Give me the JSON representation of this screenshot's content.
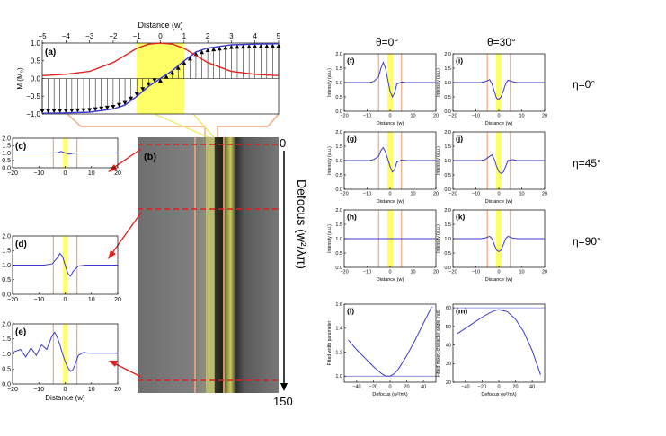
{
  "figure": {
    "header_theta0": "θ=0°",
    "header_theta30": "θ=30°",
    "row_eta0": "η=0°",
    "row_eta45": "η=45°",
    "row_eta90": "η=90°",
    "defocus_label": "Defocus (w²/λπ)",
    "defocus_start": "0",
    "defocus_end": "150",
    "colors": {
      "curve": "#3a3acb",
      "red_curve": "#e0221d",
      "highlight": "#ffff66",
      "orange_line": "#f3a97f",
      "dashed": "#e11d1d",
      "grey_image": "#7a7a7a"
    }
  },
  "chart_data": [
    {
      "id": "a",
      "panel_label": "(a)",
      "type": "line",
      "title": "Distance (w)",
      "xlabel": "",
      "ylabel": "M (M₀)",
      "xlim": [
        -5,
        5
      ],
      "ylim": [
        -1,
        1
      ],
      "xticks": [
        "−5",
        "−4",
        "−3",
        "−2",
        "−1",
        "0",
        "1",
        "2",
        "3",
        "4",
        "5"
      ],
      "yticks": [
        "1.0",
        "0.5",
        "0.0",
        "−0.5",
        "−1.0"
      ],
      "series": [
        {
          "x": [
            -5,
            -4,
            -3,
            -2,
            -1.5,
            -1,
            -0.5,
            0,
            0.5,
            1,
            1.5,
            2,
            3,
            4,
            5
          ],
          "y": [
            -0.98,
            -0.97,
            -0.95,
            -0.86,
            -0.75,
            -0.5,
            -0.22,
            0.0,
            0.22,
            0.5,
            0.75,
            0.86,
            0.95,
            0.97,
            0.98
          ]
        },
        {
          "x": [
            -5,
            -4,
            -3,
            -2,
            -1.5,
            -1,
            -0.5,
            0,
            0.5,
            1,
            1.5,
            2,
            3,
            4,
            5
          ],
          "y": [
            0.08,
            0.12,
            0.2,
            0.45,
            0.65,
            0.85,
            0.97,
            1.0,
            0.97,
            0.85,
            0.65,
            0.45,
            0.2,
            0.12,
            0.08
          ]
        }
      ]
    },
    {
      "id": "c",
      "panel_label": "(c)",
      "type": "line",
      "xlim": [
        -20,
        20
      ],
      "ylim": [
        0,
        2
      ],
      "xticks": [
        "−20",
        "−10",
        "0",
        "10",
        "20"
      ],
      "yticks": [
        "2.0",
        "1.5",
        "1.0",
        "0.5",
        "0.0"
      ],
      "xlabel": "",
      "series": [
        {
          "x": [
            -20,
            -5,
            -3,
            -1.5,
            0,
            1.5,
            3,
            5,
            20
          ],
          "y": [
            1.0,
            1.0,
            1.02,
            1.1,
            1.0,
            0.92,
            0.98,
            1.0,
            1.0
          ]
        }
      ]
    },
    {
      "id": "d",
      "panel_label": "(d)",
      "type": "line",
      "xlim": [
        -20,
        20
      ],
      "ylim": [
        0,
        2
      ],
      "xticks": [
        "−20",
        "−10",
        "0",
        "10",
        "20"
      ],
      "yticks": [
        "2.0",
        "1.5",
        "1.0",
        "0.5",
        "0.0"
      ],
      "xlabel": "",
      "series": [
        {
          "x": [
            -20,
            -8,
            -5,
            -3,
            -2,
            -1,
            0,
            1,
            2,
            3,
            5,
            8,
            20
          ],
          "y": [
            1.0,
            1.0,
            1.04,
            1.25,
            1.4,
            1.3,
            1.0,
            0.72,
            0.62,
            0.78,
            0.97,
            1.0,
            1.0
          ]
        }
      ]
    },
    {
      "id": "e",
      "panel_label": "(e)",
      "type": "line",
      "xlim": [
        -20,
        20
      ],
      "ylim": [
        0,
        2
      ],
      "xticks": [
        "−20",
        "−10",
        "0",
        "10",
        "20"
      ],
      "yticks": [
        "2.0",
        "1.5",
        "1.0",
        "0.5",
        "0.0"
      ],
      "xlabel": "Distance (w)",
      "series": [
        {
          "x": [
            -20,
            -17,
            -15,
            -13,
            -11,
            -9,
            -7,
            -5,
            -4,
            -3,
            -2,
            -1,
            0,
            1,
            2,
            3,
            4,
            5,
            7,
            9,
            20
          ],
          "y": [
            1.05,
            1.15,
            0.9,
            1.2,
            0.95,
            1.3,
            1.15,
            1.6,
            1.72,
            1.55,
            1.3,
            1.0,
            0.75,
            0.55,
            0.42,
            0.48,
            0.7,
            0.95,
            1.05,
            1.02,
            1.02
          ]
        }
      ]
    },
    {
      "id": "f",
      "panel_label": "(f)",
      "type": "line",
      "xlim": [
        -20,
        20
      ],
      "ylim": [
        0,
        2
      ],
      "ylabel": "Intensity (a.u.)",
      "xlabel": "Distance (w)",
      "xticks": [
        "−20",
        "−10",
        "0",
        "10",
        "20"
      ],
      "yticks": [
        "2.0",
        "1.5",
        "1.0",
        "0.5",
        "0.0"
      ],
      "series": [
        {
          "x": [
            -20,
            -9,
            -7,
            -5,
            -4,
            -3,
            -2,
            -1,
            0,
            1,
            2,
            3,
            5,
            7,
            20
          ],
          "y": [
            1.0,
            1.0,
            1.04,
            1.2,
            1.5,
            1.7,
            1.5,
            1.1,
            0.7,
            0.5,
            0.65,
            0.95,
            1.02,
            1.0,
            1.0
          ]
        }
      ]
    },
    {
      "id": "i",
      "panel_label": "(i)",
      "type": "line",
      "xlim": [
        -20,
        20
      ],
      "ylim": [
        0,
        2
      ],
      "ylabel": "Intensity (a.u.)",
      "xlabel": "Distance (w)",
      "xticks": [
        "−20",
        "−10",
        "0",
        "10",
        "20"
      ],
      "yticks": [
        "2.0",
        "1.5",
        "1.0",
        "0.5",
        "0.0"
      ],
      "series": [
        {
          "x": [
            -20,
            -8,
            -6,
            -4,
            -3,
            -2,
            -1,
            0,
            1,
            2,
            3,
            4,
            6,
            8,
            20
          ],
          "y": [
            1.0,
            1.0,
            1.03,
            1.1,
            0.95,
            0.7,
            0.45,
            0.42,
            0.5,
            0.72,
            0.95,
            1.08,
            1.03,
            1.0,
            1.0
          ]
        }
      ]
    },
    {
      "id": "g",
      "panel_label": "(g)",
      "type": "line",
      "xlim": [
        -20,
        20
      ],
      "ylim": [
        0,
        2
      ],
      "ylabel": "Intensity (a.u.)",
      "xlabel": "Distance (w)",
      "xticks": [
        "−20",
        "−10",
        "0",
        "10",
        "20"
      ],
      "yticks": [
        "2.0",
        "1.5",
        "1.0",
        "0.5",
        "0.0"
      ],
      "series": [
        {
          "x": [
            -20,
            -9,
            -7,
            -5,
            -4,
            -3,
            -2,
            -1,
            0,
            1,
            2,
            3,
            5,
            7,
            20
          ],
          "y": [
            1.0,
            1.0,
            1.04,
            1.15,
            1.35,
            1.45,
            1.3,
            1.05,
            0.8,
            0.6,
            0.7,
            0.95,
            1.02,
            1.0,
            1.0
          ]
        }
      ]
    },
    {
      "id": "j",
      "panel_label": "(j)",
      "type": "line",
      "xlim": [
        -20,
        20
      ],
      "ylim": [
        0,
        2
      ],
      "ylabel": "Intensity (a.u.)",
      "xlabel": "Distance (w)",
      "xticks": [
        "−20",
        "−10",
        "0",
        "10",
        "20"
      ],
      "yticks": [
        "2.0",
        "1.5",
        "1.0",
        "0.5",
        "0.0"
      ],
      "series": [
        {
          "x": [
            -20,
            -8,
            -6,
            -4,
            -3,
            -2,
            -1,
            0,
            1,
            2,
            3,
            4,
            6,
            8,
            20
          ],
          "y": [
            1.0,
            1.0,
            1.03,
            1.15,
            1.2,
            1.05,
            0.8,
            0.62,
            0.55,
            0.6,
            0.8,
            1.0,
            1.03,
            1.0,
            1.0
          ]
        }
      ]
    },
    {
      "id": "h",
      "panel_label": "(h)",
      "type": "line",
      "xlim": [
        -20,
        20
      ],
      "ylim": [
        0,
        2
      ],
      "ylabel": "Intensity (a.u.)",
      "xlabel": "Distance (w)",
      "xticks": [
        "−20",
        "−10",
        "0",
        "10",
        "20"
      ],
      "yticks": [
        "2.0",
        "1.5",
        "1.0",
        "0.5",
        "0.0"
      ],
      "series": [
        {
          "x": [
            -20,
            20
          ],
          "y": [
            1.0,
            1.0
          ]
        }
      ]
    },
    {
      "id": "k",
      "panel_label": "(k)",
      "type": "line",
      "xlim": [
        -20,
        20
      ],
      "ylim": [
        0,
        2
      ],
      "ylabel": "Intensity (a.u.)",
      "xlabel": "Distance (w)",
      "xticks": [
        "−20",
        "−10",
        "0",
        "10",
        "20"
      ],
      "yticks": [
        "2.0",
        "1.5",
        "1.0",
        "0.5",
        "0.0"
      ],
      "series": [
        {
          "x": [
            -20,
            -8,
            -6,
            -4,
            -3,
            -2,
            -1,
            0,
            1,
            2,
            3,
            4,
            6,
            8,
            20
          ],
          "y": [
            1.0,
            1.0,
            1.02,
            1.08,
            1.0,
            0.8,
            0.6,
            0.55,
            0.6,
            0.8,
            1.0,
            1.08,
            1.02,
            1.0,
            1.0
          ]
        }
      ]
    },
    {
      "id": "l",
      "panel_label": "(l)",
      "type": "line",
      "xlim": [
        -55,
        55
      ],
      "ylim": [
        0.95,
        1.6
      ],
      "ylabel": "Fitted width parameter",
      "xlabel": "Defocus (w²/πλ)",
      "xticks": [
        "−40",
        "−20",
        "0",
        "20",
        "40"
      ],
      "yticks": [
        "1.6",
        "1.4",
        "1.2",
        "1.0"
      ],
      "reference_y": 1.0,
      "series": [
        {
          "x": [
            -50,
            -40,
            -30,
            -20,
            -10,
            -5,
            0,
            5,
            10,
            20,
            30,
            40,
            50
          ],
          "y": [
            1.3,
            1.22,
            1.15,
            1.08,
            1.02,
            1.0,
            1.0,
            1.02,
            1.06,
            1.17,
            1.3,
            1.44,
            1.58
          ]
        }
      ]
    },
    {
      "id": "m",
      "panel_label": "(m)",
      "type": "line",
      "xlim": [
        -55,
        55
      ],
      "ylim": [
        20,
        62
      ],
      "ylabel": "Fitted mixed-character angle (rad)",
      "xlabel": "Defocus (w²/πλ)",
      "xticks": [
        "−40",
        "−20",
        "0",
        "20",
        "40"
      ],
      "yticks": [
        "60",
        "50",
        "40",
        "30",
        "20"
      ],
      "reference_y": 60,
      "series": [
        {
          "x": [
            -50,
            -40,
            -30,
            -20,
            -10,
            -5,
            0,
            10,
            20,
            30,
            40,
            50
          ],
          "y": [
            46,
            49,
            52,
            55,
            57.5,
            58.5,
            59,
            58,
            54,
            47,
            37,
            24
          ]
        }
      ]
    }
  ]
}
